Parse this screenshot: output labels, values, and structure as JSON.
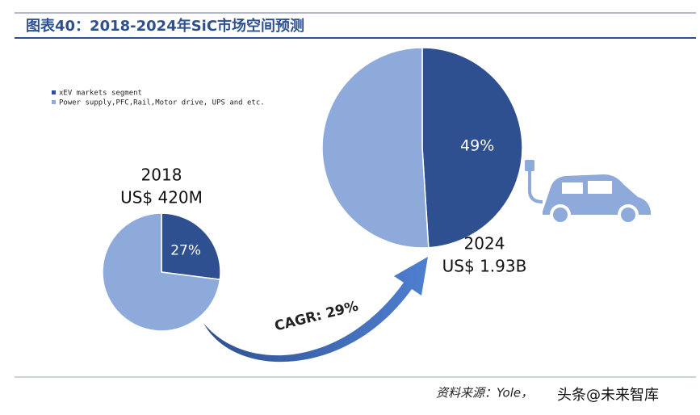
{
  "chart_data": {
    "type": "pie",
    "title": "图表40：2018-2024年SiC市场空间预测",
    "categories": [
      "xEV markets segment",
      "Power supply,PFC,Rail,Motor drive, UPS and etc."
    ],
    "colors": [
      "#2f5090",
      "#8eaadb"
    ],
    "pies": [
      {
        "label": "2018",
        "total": "US$ 420M",
        "values": [
          27,
          73
        ],
        "value_labels": [
          "27%",
          null
        ]
      },
      {
        "label": "2024",
        "total": "US$ 1.93B",
        "values": [
          49,
          51
        ],
        "value_labels": [
          "49%",
          null
        ]
      }
    ],
    "annotations": [
      "CAGR: 29%"
    ],
    "source": "资料来源：Yole，",
    "watermark": "头条@未来智库"
  }
}
